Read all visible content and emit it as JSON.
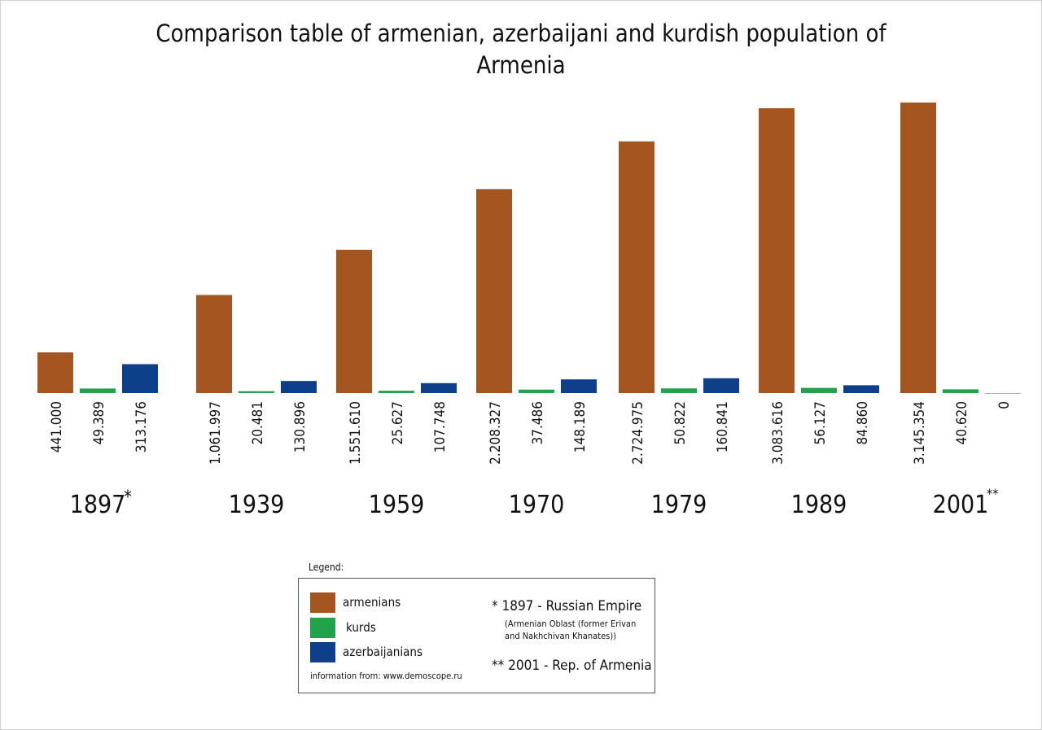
{
  "chart_data": {
    "type": "bar",
    "title": "Comparison table of armenian, azerbaijani and kurdish population of Armenia",
    "title_lines": [
      "Comparison table of armenian, azerbaijani and kurdish population of",
      "Armenia"
    ],
    "categories": [
      "1897",
      "1939",
      "1959",
      "1970",
      "1979",
      "1989",
      "2001"
    ],
    "category_markers": [
      "*",
      "",
      "",
      "",
      "",
      "",
      "**"
    ],
    "series": [
      {
        "name": "armenians",
        "color": "#a45520",
        "values": [
          441000,
          1061997,
          1551610,
          2208327,
          2724975,
          3083616,
          3145354
        ],
        "labels": [
          "441.000",
          "1.061.997",
          "1.551.610",
          "2.208.327",
          "2.724.975",
          "3.083.616",
          "3.145.354"
        ]
      },
      {
        "name": "kurds",
        "color": "#22a24a",
        "values": [
          49389,
          20481,
          25627,
          37486,
          50822,
          56127,
          40620
        ],
        "labels": [
          "49.389",
          "20.481",
          "25.627",
          "37.486",
          "50.822",
          "56.127",
          "40.620"
        ]
      },
      {
        "name": "azerbaijanians",
        "color": "#0d3f8a",
        "values": [
          313176,
          130896,
          107748,
          148189,
          160841,
          84860,
          0
        ],
        "labels": [
          "313.176",
          "130.896",
          "107.748",
          "148.189",
          "160.841",
          "84.860",
          "0"
        ]
      }
    ],
    "legend_position": "bottom-center",
    "grid": false
  },
  "legend": {
    "heading": "Legend:",
    "items": [
      {
        "label": "armenians",
        "color": "#a45520"
      },
      {
        "label": "kurds",
        "color": "#22a24a"
      },
      {
        "label": "azerbaijanians",
        "color": "#0d3f8a"
      }
    ],
    "source_note": "information from: www.demoscope.ru",
    "footnote_1": "* 1897 - Russian Empire",
    "footnote_1_detail": "(Armenian Oblast (former Erivan and Nakhchivan Khanates))",
    "footnote_2": "** 2001 - Rep. of Armenia"
  }
}
